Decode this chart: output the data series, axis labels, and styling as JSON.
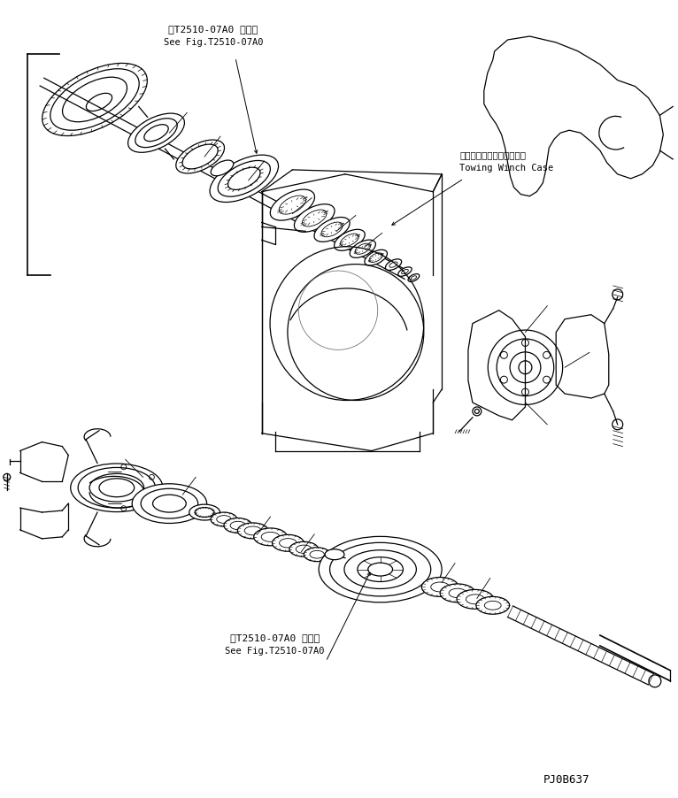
{
  "bg_color": "#ffffff",
  "line_color": "#000000",
  "fig_width": 7.66,
  "fig_height": 9.02,
  "dpi": 100,
  "title_jp1": "第T2510-07A0 図参照",
  "title_see1": "See Fig.T2510-07A0",
  "title_jp2": "第T2510-07A0 図参照",
  "title_see2": "See Fig.T2510-07A0",
  "label_jp_winch": "トーインダウィンチケース",
  "label_en_winch": "Towing Winch Case",
  "page_code": "PJ0B637"
}
